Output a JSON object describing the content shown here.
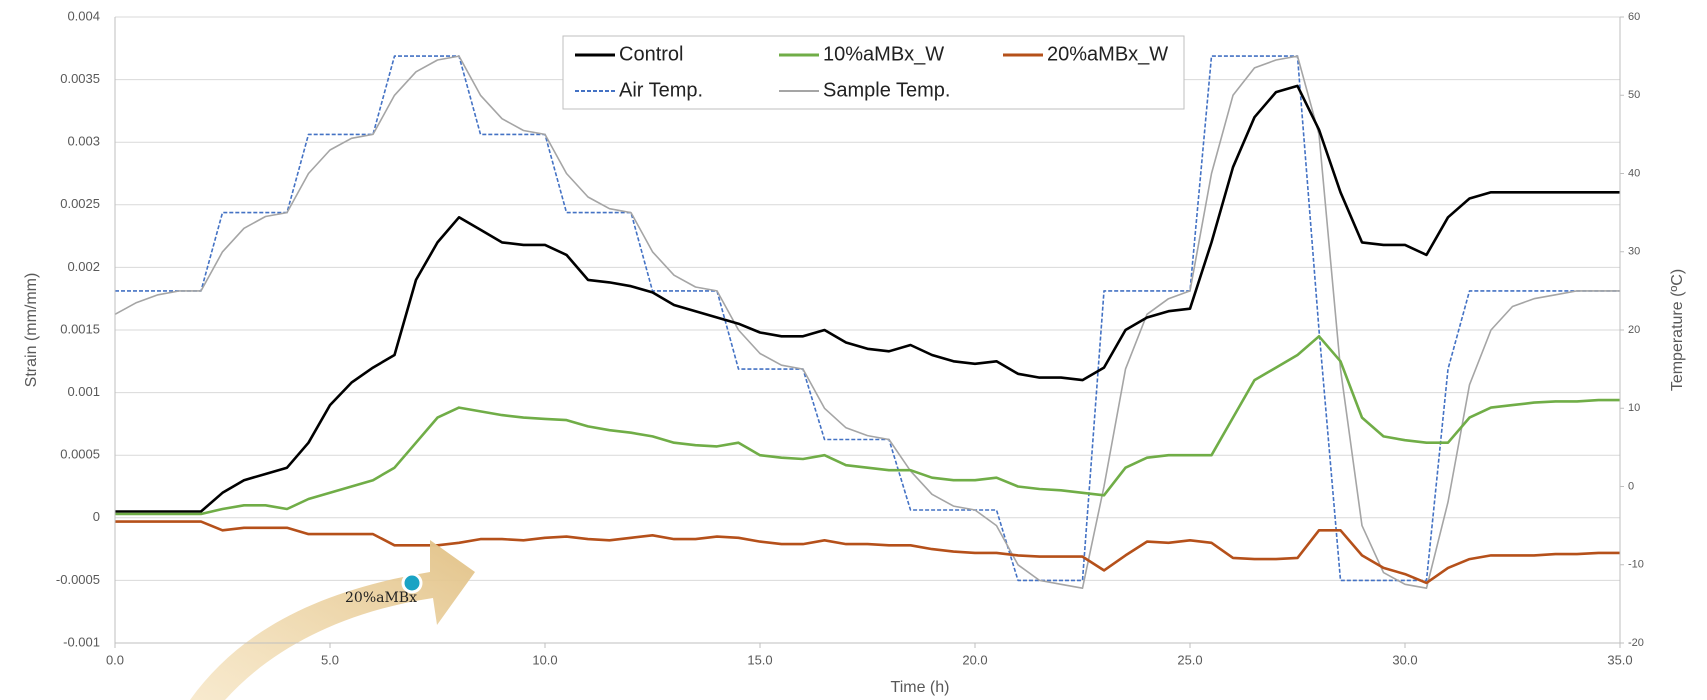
{
  "chart_data": {
    "type": "line",
    "xlabel": "Time (h)",
    "ylabel": "Strain (mm/mm)",
    "y2label": "Temperature (ºC)",
    "annotation": "20%aMBx",
    "legend": "top-center",
    "grid": true,
    "x": [
      0,
      0.5,
      1,
      1.5,
      2,
      2.5,
      3,
      3.5,
      4,
      4.5,
      5,
      5.5,
      6,
      6.5,
      7,
      7.5,
      8,
      8.5,
      9,
      9.5,
      10,
      10.5,
      11,
      11.5,
      12,
      12.5,
      13,
      13.5,
      14,
      14.5,
      15,
      15.5,
      16,
      16.5,
      17,
      17.5,
      18,
      18.5,
      19,
      19.5,
      20,
      20.5,
      21,
      21.5,
      22,
      22.5,
      23,
      23.5,
      24,
      24.5,
      25,
      25.5,
      26,
      26.5,
      27,
      27.5,
      28,
      28.5,
      29,
      29.5,
      30,
      30.5,
      31,
      31.5,
      32,
      32.5,
      33,
      33.5,
      34,
      34.5,
      35
    ],
    "xlim": [
      0,
      35
    ],
    "xticks": [
      {
        "value": 0,
        "label": "0.0"
      },
      {
        "value": 5,
        "label": "5.0"
      },
      {
        "value": 10,
        "label": "10.0"
      },
      {
        "value": 15,
        "label": "15.0"
      },
      {
        "value": 20,
        "label": "20.0"
      },
      {
        "value": 25,
        "label": "25.0"
      },
      {
        "value": 30,
        "label": "30.0"
      },
      {
        "value": 35,
        "label": "35.0"
      }
    ],
    "ylim": [
      -0.001,
      0.004
    ],
    "yticks": [
      -0.001,
      -0.0005,
      0,
      0.0005,
      0.001,
      0.0015,
      0.002,
      0.0025,
      0.003,
      0.0035,
      0.004
    ],
    "y2lim": [
      -20,
      60
    ],
    "y2ticks": [
      -20,
      -10,
      0,
      10,
      20,
      30,
      40,
      50,
      60
    ],
    "series": [
      {
        "name": "Control",
        "color": "#000000",
        "values": [
          5e-05,
          5e-05,
          5e-05,
          5e-05,
          5e-05,
          0.0002,
          0.0003,
          0.00035,
          0.0004,
          0.0006,
          0.0009,
          0.00108,
          0.0012,
          0.0013,
          0.0019,
          0.0022,
          0.0024,
          0.0023,
          0.0022,
          0.00218,
          0.00218,
          0.0021,
          0.0019,
          0.00188,
          0.00185,
          0.0018,
          0.0017,
          0.00165,
          0.0016,
          0.00155,
          0.00148,
          0.00145,
          0.00145,
          0.0015,
          0.0014,
          0.00135,
          0.00133,
          0.00138,
          0.0013,
          0.00125,
          0.00123,
          0.00125,
          0.00115,
          0.00112,
          0.00112,
          0.0011,
          0.0012,
          0.0015,
          0.0016,
          0.00165,
          0.00167,
          0.0022,
          0.0028,
          0.0032,
          0.0034,
          0.00345,
          0.0031,
          0.0026,
          0.0022,
          0.00218,
          0.00218,
          0.0021,
          0.0024,
          0.00255,
          0.0026,
          0.0026,
          0.0026,
          0.0026,
          0.0026,
          0.0026,
          0.0026
        ]
      },
      {
        "name": "10%aMBx_W",
        "color": "#70ad47",
        "values": [
          3e-05,
          3e-05,
          3e-05,
          3e-05,
          3e-05,
          7e-05,
          0.0001,
          0.0001,
          7e-05,
          0.00015,
          0.0002,
          0.00025,
          0.0003,
          0.0004,
          0.0006,
          0.0008,
          0.00088,
          0.00085,
          0.00082,
          0.0008,
          0.00079,
          0.00078,
          0.00073,
          0.0007,
          0.00068,
          0.00065,
          0.0006,
          0.00058,
          0.00057,
          0.0006,
          0.0005,
          0.00048,
          0.00047,
          0.0005,
          0.00042,
          0.0004,
          0.00038,
          0.00038,
          0.00032,
          0.0003,
          0.0003,
          0.00032,
          0.00025,
          0.00023,
          0.00022,
          0.0002,
          0.00018,
          0.0004,
          0.00048,
          0.0005,
          0.0005,
          0.0005,
          0.0008,
          0.0011,
          0.0012,
          0.0013,
          0.00145,
          0.00125,
          0.0008,
          0.00065,
          0.00062,
          0.0006,
          0.0006,
          0.0008,
          0.00088,
          0.0009,
          0.00092,
          0.00093,
          0.00093,
          0.00094,
          0.00094
        ]
      },
      {
        "name": "20%aMBx_W",
        "color": "#b5501a",
        "values": [
          -3e-05,
          -3e-05,
          -3e-05,
          -3e-05,
          -3e-05,
          -0.0001,
          -8e-05,
          -8e-05,
          -8e-05,
          -0.00013,
          -0.00013,
          -0.00013,
          -0.00013,
          -0.00022,
          -0.00022,
          -0.00022,
          -0.0002,
          -0.00017,
          -0.00017,
          -0.00018,
          -0.00016,
          -0.00015,
          -0.00017,
          -0.00018,
          -0.00016,
          -0.00014,
          -0.00017,
          -0.00017,
          -0.00015,
          -0.00016,
          -0.00019,
          -0.00021,
          -0.00021,
          -0.00018,
          -0.00021,
          -0.00021,
          -0.00022,
          -0.00022,
          -0.00025,
          -0.00027,
          -0.00028,
          -0.00028,
          -0.0003,
          -0.00031,
          -0.00031,
          -0.00031,
          -0.00042,
          -0.0003,
          -0.00019,
          -0.0002,
          -0.00018,
          -0.0002,
          -0.00032,
          -0.00033,
          -0.00033,
          -0.00032,
          -0.0001,
          -0.0001,
          -0.0003,
          -0.0004,
          -0.00045,
          -0.00052,
          -0.0004,
          -0.00033,
          -0.0003,
          -0.0003,
          -0.0003,
          -0.00029,
          -0.00029,
          -0.00028,
          -0.00028
        ]
      },
      {
        "name": "Air Temp.",
        "color": "#4472c4",
        "dashed": true,
        "axis": "y2",
        "values": [
          25,
          25,
          25,
          25,
          25,
          35,
          35,
          35,
          35,
          45,
          45,
          45,
          45,
          55,
          55,
          55,
          55,
          45,
          45,
          45,
          45,
          35,
          35,
          35,
          35,
          25,
          25,
          25,
          25,
          15,
          15,
          15,
          15,
          6,
          6,
          6,
          6,
          -3,
          -3,
          -3,
          -3,
          -3,
          -12,
          -12,
          -12,
          -12,
          25,
          25,
          25,
          25,
          25,
          55,
          55,
          55,
          55,
          55,
          20,
          -12,
          -12,
          -12,
          -12,
          -12,
          15,
          25,
          25,
          25,
          25,
          25,
          25,
          25,
          25
        ]
      },
      {
        "name": "Sample Temp.",
        "color": "#a5a5a5",
        "axis": "y2",
        "values": [
          22,
          23.5,
          24.5,
          25,
          25,
          30,
          33,
          34.5,
          35,
          40,
          43,
          44.5,
          45,
          50,
          53,
          54.5,
          55,
          50,
          47,
          45.5,
          45,
          40,
          37,
          35.5,
          35,
          30,
          27,
          25.5,
          25,
          20,
          17,
          15.5,
          15,
          10,
          7.5,
          6.5,
          6,
          2,
          -1,
          -2.5,
          -3,
          -5,
          -10,
          -12,
          -12.5,
          -13,
          0,
          15,
          22,
          24,
          25,
          40,
          50,
          53.5,
          54.5,
          55,
          45,
          15,
          -5,
          -11,
          -12.5,
          -13,
          -2,
          13,
          20,
          23,
          24,
          24.5,
          25,
          25,
          25
        ]
      }
    ]
  }
}
